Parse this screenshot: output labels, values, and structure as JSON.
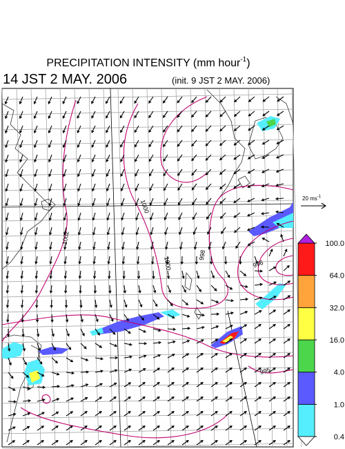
{
  "title": {
    "text": "PRECIPITATION INTENSITY (mm hour",
    "sup": "-1",
    "end": ")"
  },
  "valid_time": "14 JST 2 MAY. 2006",
  "init_time": "(init. 9 JST 2 MAY. 2006)",
  "vector_legend": {
    "text": "20 ms",
    "sup": "-1"
  },
  "contour_labels": [
    "1002",
    "1000",
    "1000",
    "998",
    "996",
    "995"
  ],
  "colorbar": {
    "levels": [
      {
        "value": 0.4,
        "label": "0.4"
      },
      {
        "value": 1,
        "label": "1.0"
      },
      {
        "value": 4,
        "label": "4.0"
      },
      {
        "value": 16,
        "label": "16.0"
      },
      {
        "value": 32,
        "label": "32.0"
      },
      {
        "value": 64,
        "label": "64.0"
      },
      {
        "value": 100,
        "label": "100.0"
      }
    ],
    "colors": [
      "#55eeff",
      "#5a5aff",
      "#4cd64c",
      "#ffff44",
      "#ffa43a",
      "#ff1a1a"
    ],
    "over_color": "#b020e0",
    "under_color": "#ffffff"
  }
}
